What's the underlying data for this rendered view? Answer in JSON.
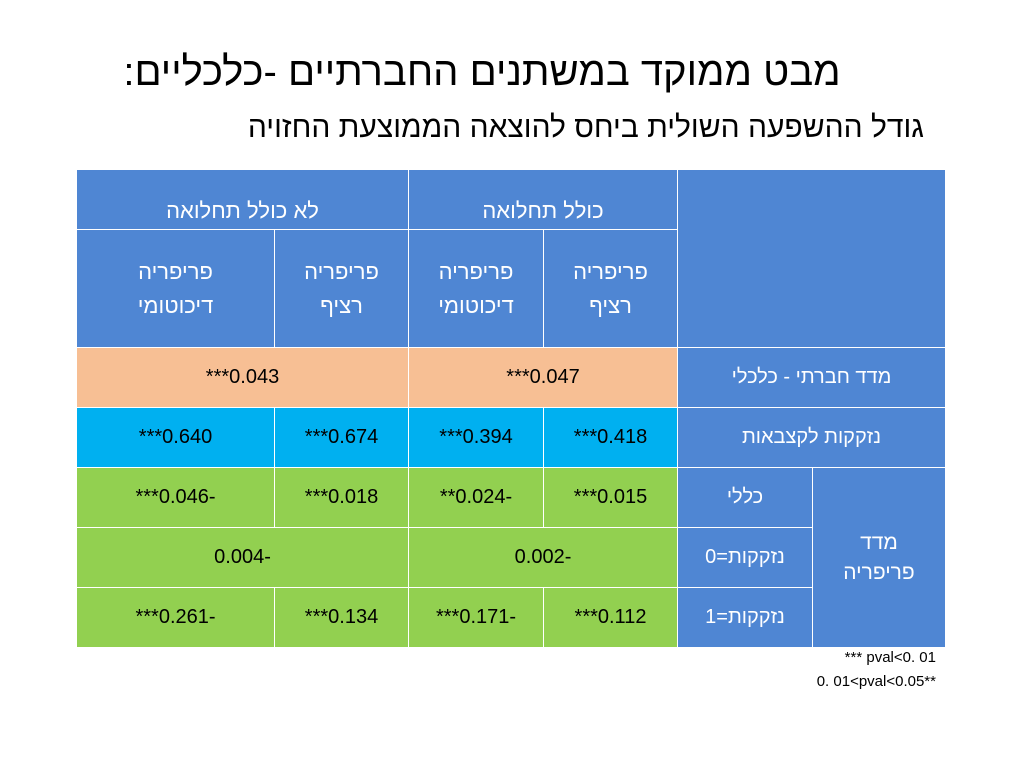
{
  "title": "מבט ממוקד במשתנים החברתיים -כלכליים:",
  "subtitle": "גודל ההשפעה השולית ביחס להוצאה הממוצעת החזויה",
  "table": {
    "group_headers": [
      "כולל תחלואה",
      "לא כולל תחלואה"
    ],
    "sub_headers": [
      "פריפריה\nרציף",
      "פריפריה\nדיכוטומי",
      "פריפריה\nרציף",
      "פריפריה\nדיכוטומי"
    ],
    "rows": [
      {
        "label": "מדד חברתי - כלכלי",
        "values": [
          "***0.047",
          "***0.043"
        ]
      },
      {
        "label": "נזקקות לקצבאות",
        "values": [
          "***0.418",
          "***0.394",
          "***0.674",
          "***0.640"
        ]
      },
      {
        "label": "כללי",
        "values": [
          "***0.015",
          "**0.024-",
          "***0.018",
          "***0.046-"
        ]
      },
      {
        "label": "נזקקות=0",
        "values": [
          "0.002-",
          "0.004-"
        ]
      },
      {
        "label": "נזקקות=1",
        "values": [
          "***0.112",
          "***0.171-",
          "***0.134",
          "***0.261-"
        ]
      }
    ],
    "group_label": "מדד\nפריפריה"
  },
  "notes": [
    "*** pval<0. 01",
    "0. 01<pval<0.05**"
  ],
  "colors": {
    "header": "#4f86d3",
    "row_ses": "#f7bf94",
    "row_allowance": "#00b0f0",
    "row_periphery": "#92d050"
  }
}
